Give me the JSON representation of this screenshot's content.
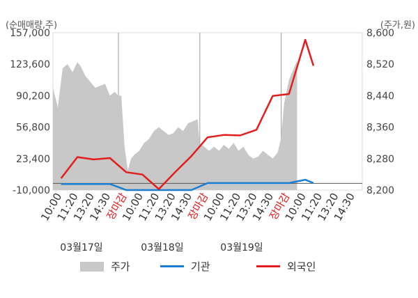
{
  "chart_data": {
    "type": "line",
    "left_axis_unit": "(순매매량,주)",
    "right_axis_unit": "(주가,원)",
    "left_ticks": [
      "157,000",
      "123,600",
      "90,200",
      "56,800",
      "23,400",
      "-10,000"
    ],
    "right_ticks": [
      "8,600",
      "8,520",
      "8,440",
      "8,360",
      "8,280",
      "8,200"
    ],
    "left_ylim": [
      -10000,
      157000
    ],
    "right_ylim": [
      8200,
      8600
    ],
    "x_tick_labels": [
      "10:00",
      "11:20",
      "13:20",
      "14:30",
      "장마감",
      "10:00",
      "11:20",
      "13:20",
      "14:30",
      "장마감",
      "10:00",
      "11:20",
      "13:20",
      "14:30",
      "장마감",
      "10:00",
      "11:20",
      "13:20",
      "14:30"
    ],
    "close_label": "장마감",
    "date_labels": [
      "03월17일",
      "03월18일",
      "03월19일"
    ],
    "series": [
      {
        "name": "주가",
        "kind": "area",
        "color": "#c8c8c8",
        "axis": "right",
        "x": [
          0,
          0.3,
          0.6,
          0.9,
          1.2,
          1.5,
          1.7,
          2.0,
          2.3,
          2.6,
          2.9,
          3.2,
          3.5,
          3.8,
          4.0,
          4.2,
          4.4,
          4.6,
          4.8,
          5.0,
          5.3,
          5.6,
          5.9,
          6.2,
          6.5,
          6.8,
          7.1,
          7.4,
          7.7,
          8.0,
          8.3,
          8.6,
          8.9,
          9.0,
          9.3,
          9.6,
          9.9,
          10.2,
          10.5,
          10.8,
          11.1,
          11.4,
          11.7,
          12.0,
          12.3,
          12.6,
          12.9,
          13.2,
          13.5,
          13.8,
          14.0,
          14.2,
          14.5,
          14.8,
          15.0
        ],
        "values": [
          8460,
          8410,
          8510,
          8520,
          8500,
          8525,
          8515,
          8490,
          8475,
          8460,
          8465,
          8470,
          8440,
          8450,
          8440,
          8440,
          8310,
          8250,
          8280,
          8290,
          8300,
          8320,
          8330,
          8350,
          8360,
          8350,
          8340,
          8345,
          8360,
          8350,
          8370,
          8375,
          8380,
          8320,
          8310,
          8300,
          8310,
          8300,
          8315,
          8305,
          8320,
          8300,
          8310,
          8290,
          8280,
          8285,
          8300,
          8290,
          8280,
          8295,
          8330,
          8420,
          8480,
          8510,
          8530
        ]
      },
      {
        "name": "기관",
        "kind": "line",
        "color": "#1a7dd2",
        "axis": "left",
        "x": [
          0.5,
          1.5,
          2.5,
          3.5,
          4.5,
          5.5,
          6.5,
          7.5,
          8.5,
          9.5,
          10.5,
          11.5,
          12.5,
          13.5,
          14.5,
          15.5,
          16.0
        ],
        "values": [
          -3500,
          -3500,
          -3500,
          -3500,
          -10000,
          -10000,
          -10000,
          -10000,
          -10000,
          -2500,
          -2500,
          -2500,
          -2500,
          -2500,
          -2500,
          1000,
          -2500
        ]
      },
      {
        "name": "외국인",
        "kind": "line",
        "color": "#e31c1c",
        "axis": "left",
        "x": [
          0.5,
          1.5,
          2.5,
          3.5,
          4.5,
          5.5,
          6.5,
          7.5,
          8.5,
          9.5,
          10.5,
          11.5,
          12.5,
          13.5,
          14.5,
          15.5,
          16.0
        ],
        "values": [
          2500,
          25000,
          22500,
          24000,
          9000,
          6500,
          -9000,
          9000,
          26000,
          46000,
          48500,
          48000,
          54000,
          90000,
          92000,
          149500,
          122000
        ]
      }
    ]
  }
}
